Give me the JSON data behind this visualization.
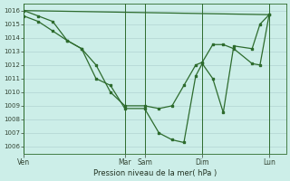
{
  "background_color": "#cceee8",
  "grid_color": "#aacccc",
  "line_color": "#2d6b2d",
  "marker_color": "#2d6b2d",
  "xlabel": "Pression niveau de la mer( hPa )",
  "ylim": [
    1005.5,
    1016.5
  ],
  "yticks": [
    1006,
    1007,
    1008,
    1009,
    1010,
    1011,
    1012,
    1013,
    1014,
    1015,
    1016
  ],
  "xtick_labels_major": [
    "Ven",
    "Mar",
    "Sam",
    "Dim",
    "Lun"
  ],
  "xtick_pos_major": [
    0.0,
    0.385,
    0.46,
    0.68,
    0.935
  ],
  "xlim": [
    0.0,
    1.0
  ],
  "series_deep": {
    "x": [
      0.0,
      0.055,
      0.11,
      0.165,
      0.22,
      0.275,
      0.33,
      0.385,
      0.46,
      0.515,
      0.565,
      0.61,
      0.655,
      0.68,
      0.72,
      0.76,
      0.8,
      0.87,
      0.9,
      0.935
    ],
    "y": [
      1016.0,
      1015.6,
      1015.2,
      1013.8,
      1013.2,
      1011.0,
      1010.5,
      1008.8,
      1008.8,
      1007.0,
      1006.5,
      1006.3,
      1011.2,
      1012.1,
      1011.0,
      1008.5,
      1013.4,
      1013.2,
      1015.0,
      1015.7
    ]
  },
  "series_mid": {
    "x": [
      0.0,
      0.055,
      0.11,
      0.165,
      0.22,
      0.275,
      0.33,
      0.385,
      0.46,
      0.515,
      0.565,
      0.61,
      0.655,
      0.68,
      0.72,
      0.76,
      0.8,
      0.87,
      0.9,
      0.935
    ],
    "y": [
      1015.6,
      1015.2,
      1014.5,
      1013.8,
      1013.2,
      1012.0,
      1010.0,
      1009.0,
      1009.0,
      1008.8,
      1009.0,
      1010.5,
      1012.0,
      1012.2,
      1013.5,
      1013.5,
      1013.2,
      1012.1,
      1012.0,
      1015.7
    ]
  },
  "series_trend": {
    "x": [
      0.0,
      0.935
    ],
    "y": [
      1016.0,
      1015.7
    ]
  }
}
